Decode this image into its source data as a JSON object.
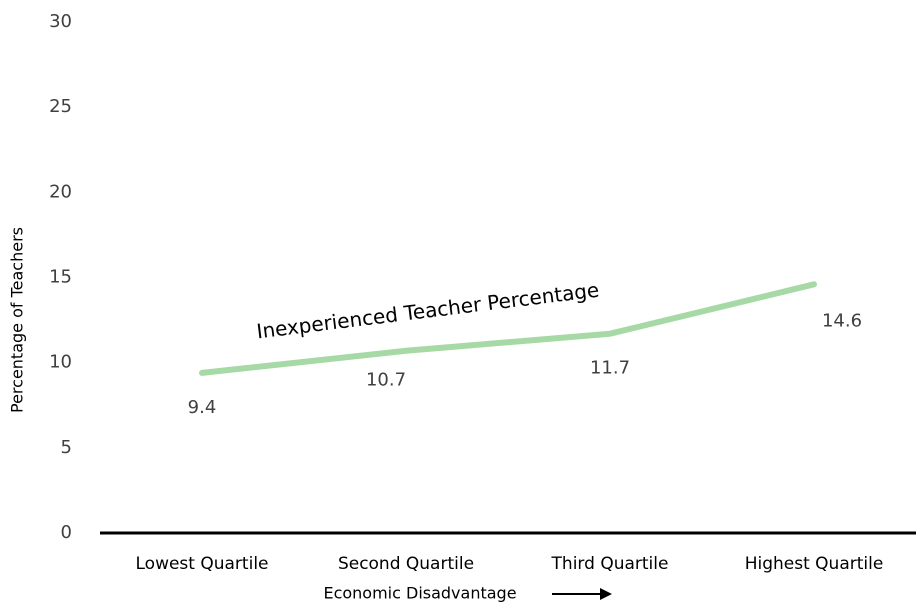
{
  "chart_data": {
    "type": "line",
    "x_label": "Economic Disadvantage",
    "y_label": "Percentage of Teachers",
    "categories": [
      "Lowest Quartile",
      "Second Quartile",
      "Third Quartile",
      "Highest Quartile"
    ],
    "series": [
      {
        "name": "Inexperienced Teacher Percentage",
        "color": "#a6d9a6",
        "values": [
          9.4,
          10.7,
          11.7,
          14.6
        ]
      }
    ],
    "ylim": [
      0,
      30
    ],
    "yticks": [
      0,
      5,
      10,
      15,
      20,
      25,
      30
    ],
    "grid": false
  }
}
